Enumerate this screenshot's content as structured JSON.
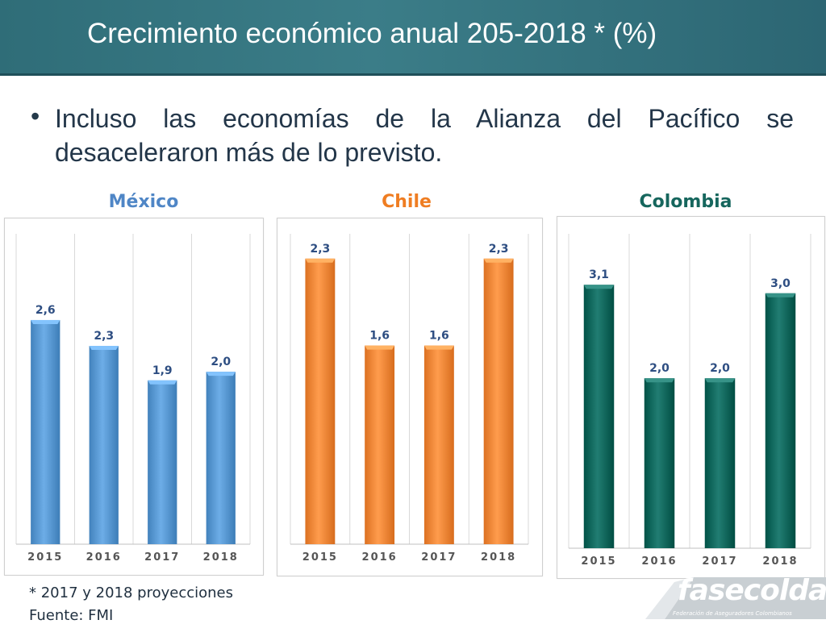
{
  "slide": {
    "title": "Crecimiento económico anual 205-2018 * (%)",
    "bullet": "Incluso las economías de la Alianza del Pacífico se desaceleraron más de lo previsto.",
    "footnote": "* 2017 y 2018 proyecciones",
    "source": "Fuente: FMI"
  },
  "logo": {
    "name": "fasecolda",
    "tagline": "Federación de Aseguradores Colombianos"
  },
  "colors": {
    "title_bar": "#2f6d78",
    "mexico": "#5b9bd5",
    "chile": "#f58a3b",
    "colombia": "#0f6b60",
    "mexico_title": "#4f86c6",
    "chile_title": "#ef7d22",
    "colombia_title": "#16665d"
  },
  "chart_data": [
    {
      "type": "bar",
      "title": "México",
      "categories": [
        "2015",
        "2016",
        "2017",
        "2018"
      ],
      "values": [
        2.6,
        2.3,
        1.9,
        2.0
      ],
      "labels": [
        "2,6",
        "2,3",
        "1,9",
        "2,0"
      ],
      "ylim": [
        0,
        3.6
      ],
      "grid": "vertical",
      "color_key": "mexico"
    },
    {
      "type": "bar",
      "title": "Chile",
      "categories": [
        "2015",
        "2016",
        "2017",
        "2018"
      ],
      "values": [
        2.3,
        1.6,
        1.6,
        2.3
      ],
      "labels": [
        "2,3",
        "1,6",
        "1,6",
        "2,3"
      ],
      "ylim": [
        0,
        2.5
      ],
      "grid": "vertical",
      "color_key": "chile"
    },
    {
      "type": "bar",
      "title": "Colombia",
      "categories": [
        "2015",
        "2016",
        "2017",
        "2018"
      ],
      "values": [
        3.1,
        2.0,
        2.0,
        3.0
      ],
      "labels": [
        "3,1",
        "2,0",
        "2,0",
        "3,0"
      ],
      "ylim": [
        0,
        3.7
      ],
      "grid": "vertical",
      "color_key": "colombia"
    }
  ]
}
